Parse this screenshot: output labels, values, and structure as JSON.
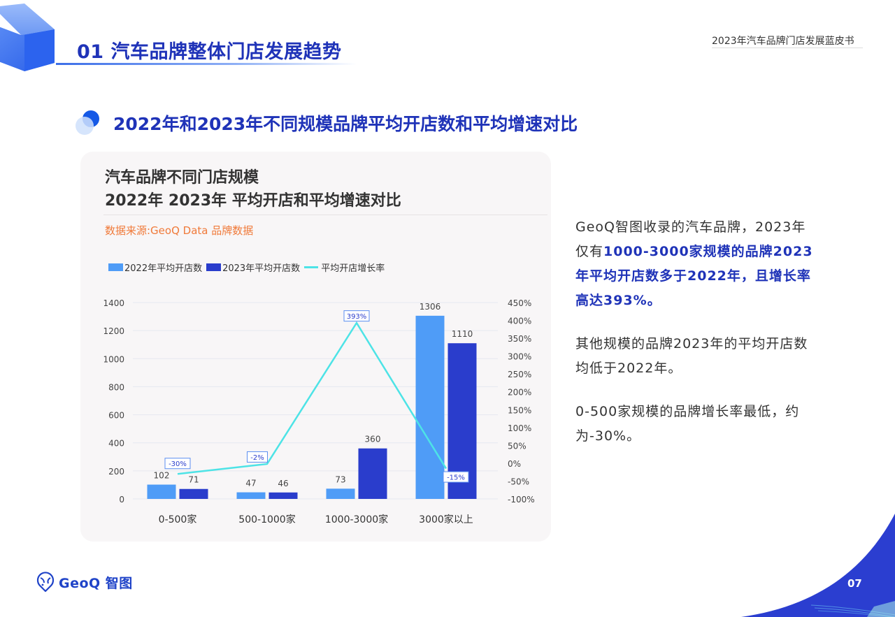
{
  "header": {
    "section_title": "01 汽车品牌整体门店发展趋势",
    "report_name": "2023年汽车品牌门店发展蓝皮书"
  },
  "section": {
    "subtitle": "2022年和2023年不同规模品牌平均开店数和平均增速对比"
  },
  "card": {
    "title_line1": "汽车品牌不同门店规模",
    "title_line2": "2022年 2023年 平均开店和平均增速对比",
    "source": "数据来源:GeoQ Data 品牌数据"
  },
  "colors": {
    "brand_blue": "#1f33b8",
    "bar_2022": "#4f9cf7",
    "bar_2023": "#2a3dcc",
    "line_growth": "#4de3e6",
    "source_orange": "#f07a3a",
    "card_bg": "#f8f6f7"
  },
  "chart_data": {
    "type": "bar",
    "title": "汽车品牌不同门店规模 2022年 2023年 平均开店和平均增速对比",
    "subtitle": "数据来源:GeoQ Data 品牌数据",
    "categories": [
      "0-500家",
      "500-1000家",
      "1000-3000家",
      "3000家以上"
    ],
    "series": [
      {
        "name": "2022年平均开店数",
        "type": "bar",
        "axis": "left",
        "values": [
          102,
          47,
          73,
          1306
        ]
      },
      {
        "name": "2023年平均开店数",
        "type": "bar",
        "axis": "left",
        "values": [
          71,
          46,
          360,
          1110
        ]
      },
      {
        "name": "平均开店增长率",
        "type": "line",
        "axis": "right",
        "values": [
          -30,
          -2,
          393,
          -15
        ],
        "labels": [
          "-30%",
          "-2%",
          "393%",
          "-15%"
        ]
      }
    ],
    "left_axis": {
      "ticks": [
        "0",
        "200",
        "400",
        "600",
        "800",
        "1000",
        "1200",
        "1400"
      ],
      "ylim": [
        0,
        1400
      ]
    },
    "right_axis": {
      "ticks": [
        "-100%",
        "-50%",
        "0%",
        "50%",
        "100%",
        "150%",
        "200%",
        "250%",
        "300%",
        "350%",
        "400%",
        "450%"
      ],
      "ylim": [
        -100,
        450
      ]
    },
    "legend": [
      "2022年平均开店数",
      "2023年平均开店数",
      "平均开店增长率"
    ],
    "legend_position": "top-left",
    "grid": true,
    "xlabel": "",
    "ylabel": ""
  },
  "insights": {
    "p1_prefix": "GeoQ智图收录的汽车品牌，2023年仅有",
    "p1_highlight": "1000-3000家规模的品牌2023年平均开店数多于2022年，且增长率高达393%。",
    "p2": "其他规模的品牌2023年的平均开店数均低于2022年。",
    "p3": "0-500家规模的品牌增长率最低，约为-30%。"
  },
  "footer": {
    "logo_text": "GeoQ 智图",
    "page_number": "07"
  }
}
